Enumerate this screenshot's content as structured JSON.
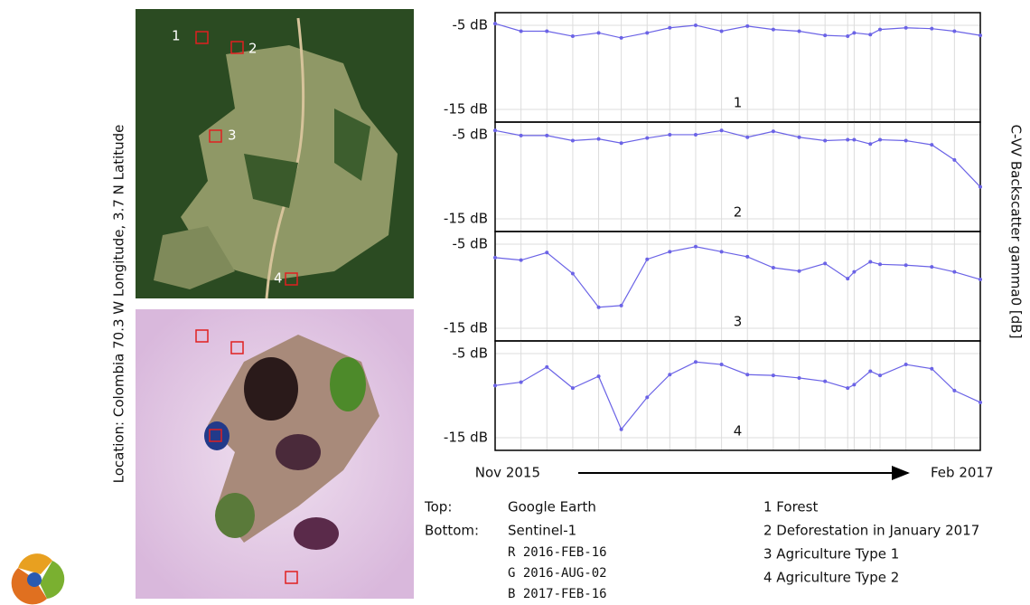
{
  "location_label": "Location: Colombia 70.3 W Longitude, 3.7 N Latitude",
  "y_axis_label": "C-VV Backscatter gamma0 [dB]",
  "image_labels": [
    "1",
    "2",
    "3",
    "4"
  ],
  "caption": {
    "top_key": "Top:",
    "top_value": "Google Earth",
    "bottom_key": "Bottom:",
    "bottom_value": "Sentinel-1",
    "bands": [
      "R 2016-FEB-16",
      "G 2016-AUG-02",
      "B 2017-FEB-16"
    ]
  },
  "classes": [
    "1 Forest",
    "2 Deforestation in January 2017",
    "3 Agriculture Type 1",
    "4 Agriculture Type 2"
  ],
  "chart_data": [
    {
      "type": "line",
      "title": "1",
      "grid": true,
      "x": [
        0,
        0.8,
        1.6,
        2.4,
        3.2,
        3.9,
        4.7,
        5.4,
        6.2,
        7,
        7.8,
        8.6,
        9.4,
        10.2,
        10.9,
        11.1,
        11.6,
        11.9,
        12.7,
        13.5,
        14.2,
        15
      ],
      "series": [
        {
          "color": "#6b63e6",
          "values": [
            -4.8,
            -5.7,
            -5.7,
            -6.3,
            -5.9,
            -6.5,
            -5.9,
            -5.3,
            -5.0,
            -5.7,
            -5.1,
            -5.5,
            -5.7,
            -6.2,
            -6.3,
            -5.9,
            -6.1,
            -5.5,
            -5.3,
            -5.4,
            -5.7,
            -6.2
          ]
        }
      ],
      "xlim": [
        0,
        15
      ],
      "ylim": [
        -16.5,
        -3.5
      ],
      "yticks": [
        {
          "value": -5,
          "label": "-5 dB"
        },
        {
          "value": -15,
          "label": "-15 dB"
        }
      ]
    },
    {
      "type": "line",
      "title": "2",
      "grid": true,
      "x": [
        0,
        0.8,
        1.6,
        2.4,
        3.2,
        3.9,
        4.7,
        5.4,
        6.2,
        7,
        7.8,
        8.6,
        9.4,
        10.2,
        10.9,
        11.1,
        11.6,
        11.9,
        12.7,
        13.5,
        14.2,
        15
      ],
      "series": [
        {
          "color": "#6b63e6",
          "values": [
            -4.5,
            -5.1,
            -5.1,
            -5.7,
            -5.5,
            -6.0,
            -5.4,
            -5.0,
            -5.0,
            -4.5,
            -5.3,
            -4.6,
            -5.3,
            -5.7,
            -5.6,
            -5.6,
            -6.1,
            -5.6,
            -5.7,
            -6.2,
            -8.0,
            -11.2
          ]
        }
      ],
      "xlim": [
        0,
        15
      ],
      "ylim": [
        -16.5,
        -3.5
      ],
      "yticks": [
        {
          "value": -5,
          "label": "-5 dB"
        },
        {
          "value": -15,
          "label": "-15 dB"
        }
      ]
    },
    {
      "type": "line",
      "title": "3",
      "grid": true,
      "x": [
        0,
        0.8,
        1.6,
        2.4,
        3.2,
        3.9,
        4.7,
        5.4,
        6.2,
        7,
        7.8,
        8.6,
        9.4,
        10.2,
        10.9,
        11.1,
        11.6,
        11.9,
        12.7,
        13.5,
        14.2,
        15
      ],
      "series": [
        {
          "color": "#6b63e6",
          "values": [
            -6.6,
            -6.9,
            -6.0,
            -8.5,
            -12.5,
            -12.3,
            -6.8,
            -5.9,
            -5.3,
            -5.9,
            -6.5,
            -7.8,
            -8.2,
            -7.3,
            -9.1,
            -8.3,
            -7.1,
            -7.4,
            -7.5,
            -7.7,
            -8.3,
            -9.2
          ]
        }
      ],
      "xlim": [
        0,
        15
      ],
      "ylim": [
        -16.5,
        -3.5
      ],
      "yticks": [
        {
          "value": -5,
          "label": "-5 dB"
        },
        {
          "value": -15,
          "label": "-15 dB"
        }
      ]
    },
    {
      "type": "line",
      "title": "4",
      "grid": true,
      "x": [
        0,
        0.8,
        1.6,
        2.4,
        3.2,
        3.9,
        4.7,
        5.4,
        6.2,
        7,
        7.8,
        8.6,
        9.4,
        10.2,
        10.9,
        11.1,
        11.6,
        11.9,
        12.7,
        13.5,
        14.2,
        15
      ],
      "series": [
        {
          "color": "#6b63e6",
          "values": [
            -8.8,
            -8.4,
            -6.6,
            -9.1,
            -7.7,
            -14.0,
            -10.2,
            -7.5,
            -6.0,
            -6.3,
            -7.5,
            -7.6,
            -7.9,
            -8.3,
            -9.1,
            -8.7,
            -7.1,
            -7.6,
            -6.3,
            -6.8,
            -9.4,
            -10.8
          ]
        }
      ],
      "xlim": [
        0,
        15
      ],
      "ylim": [
        -16.5,
        -3.5
      ],
      "yticks": [
        {
          "value": -5,
          "label": "-5 dB"
        },
        {
          "value": -15,
          "label": "-15 dB"
        }
      ],
      "xticks": [
        {
          "value": 0,
          "label": "Nov 2015"
        },
        {
          "value": 15,
          "label": "Feb 2017"
        }
      ]
    }
  ]
}
